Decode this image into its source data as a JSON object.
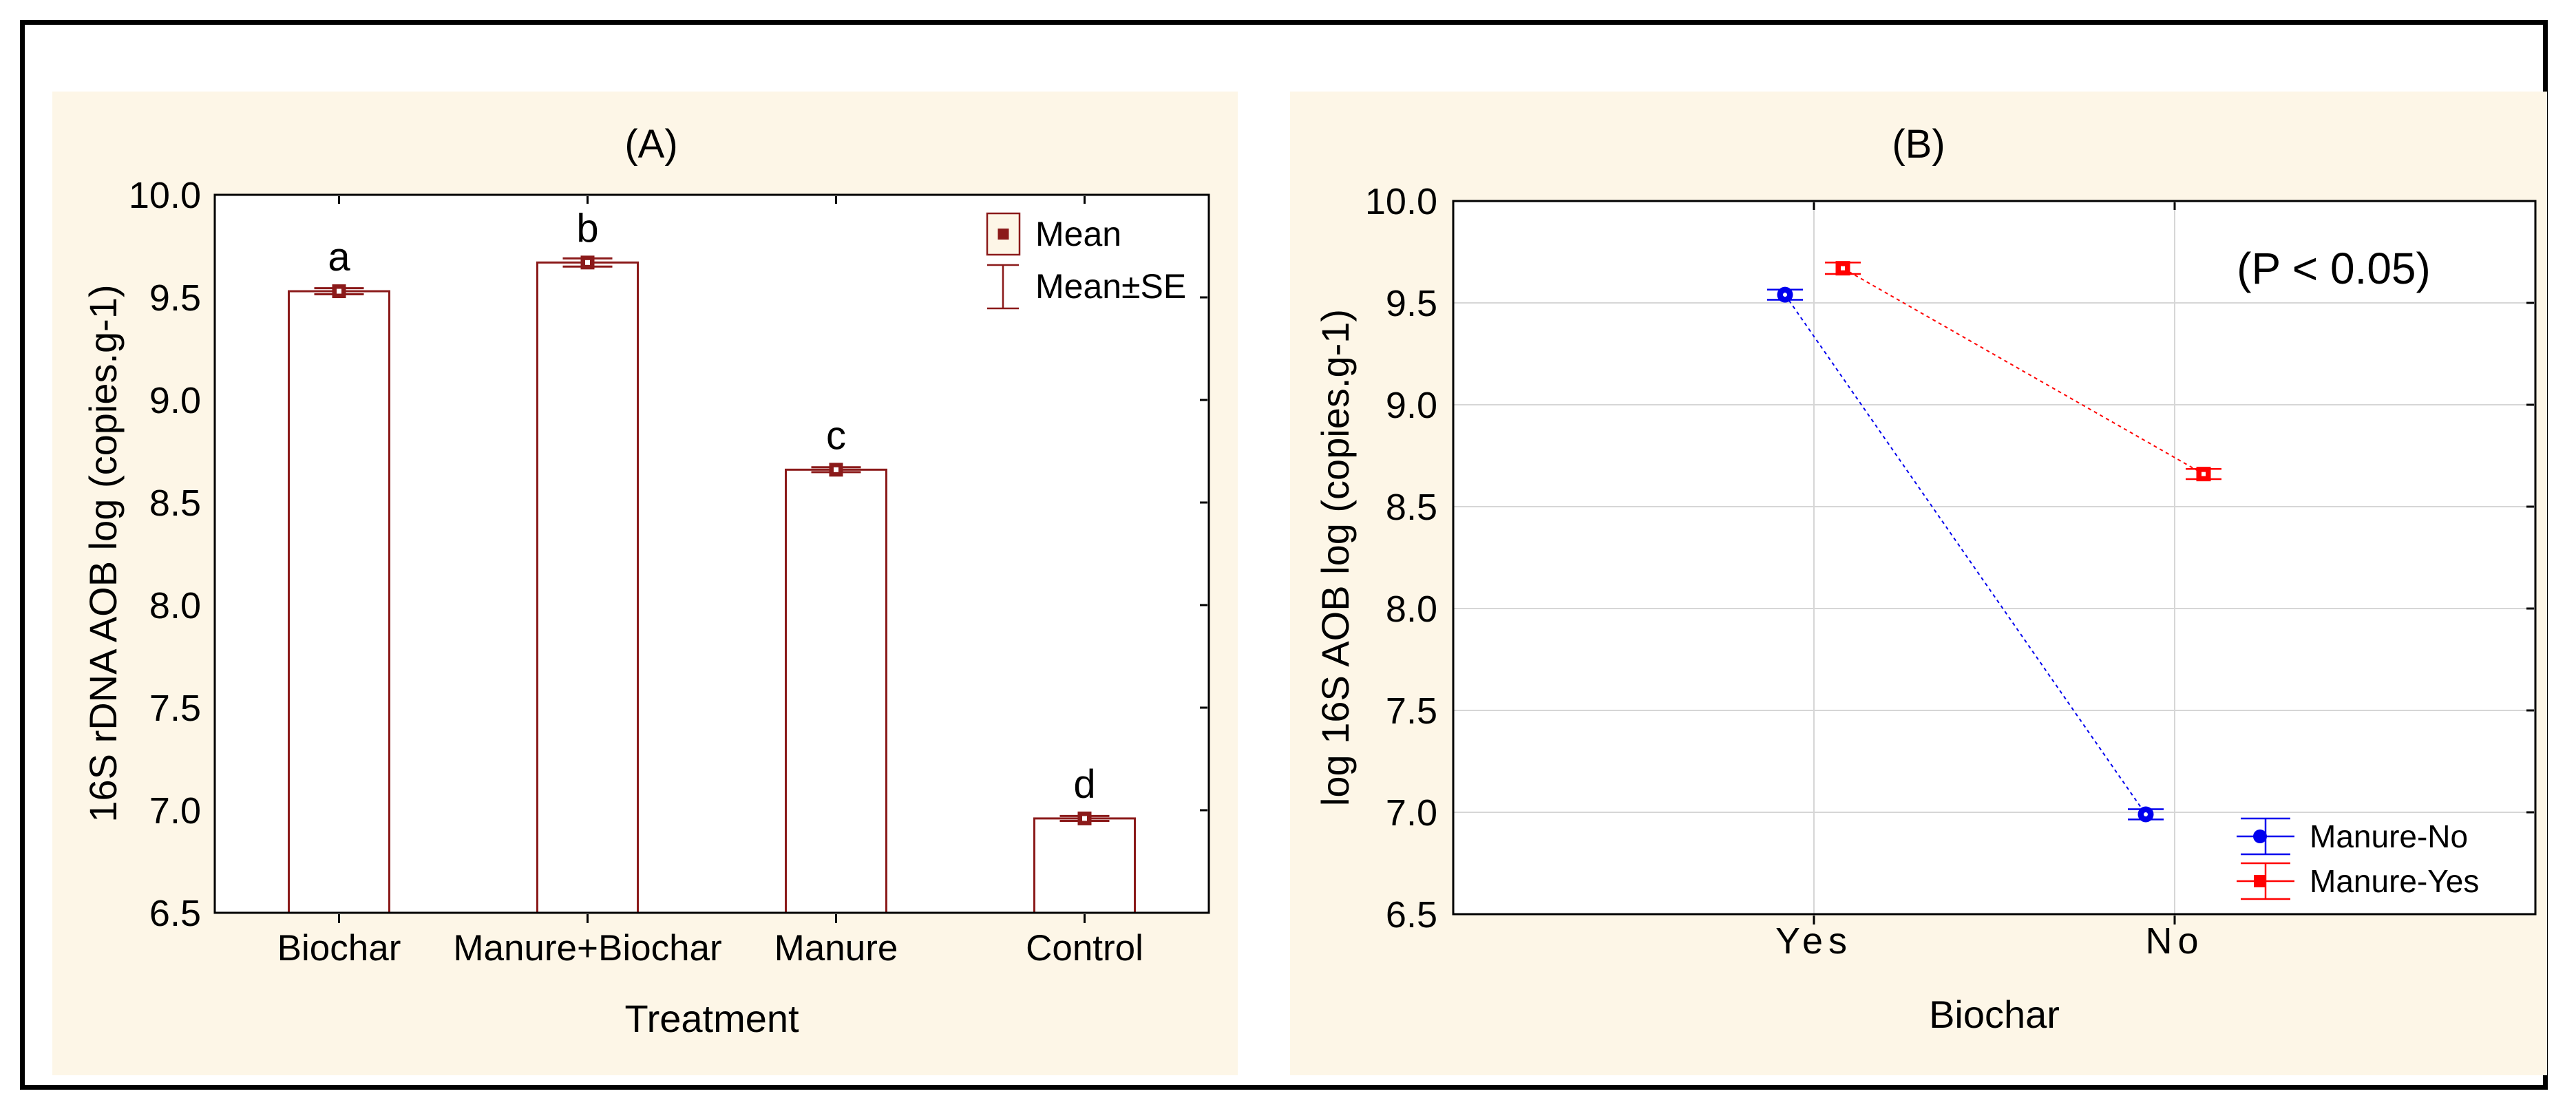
{
  "figure": {
    "background": "#ffffff",
    "border_color": "#000000",
    "panel_background": "#FDF6E7"
  },
  "chart_data": [
    {
      "id": "A",
      "type": "bar",
      "title": "(A)",
      "xlabel": "Treatment",
      "ylabel": "16S rDNA AOB log (copies.g-1)",
      "ylim": [
        6.5,
        10.0
      ],
      "ytick_labels": [
        "10.0",
        "9.5",
        "9.0",
        "8.5",
        "8.0",
        "7.5",
        "7.0",
        "6.5"
      ],
      "categories": [
        "Biochar",
        "Manure+Biochar",
        "Manure",
        "Control"
      ],
      "means": [
        9.53,
        9.67,
        8.66,
        6.96
      ],
      "se": [
        0.015,
        0.02,
        0.012,
        0.012
      ],
      "sig_letters": [
        "a",
        "b",
        "c",
        "d"
      ],
      "accent_color": "#8B1A1A",
      "bar_fill": "#ffffff",
      "plot_bg": "#ffffff",
      "grid": false,
      "legend": {
        "position": "top-right",
        "entries": [
          {
            "symbol": "mean-marker",
            "label": "Mean"
          },
          {
            "symbol": "se-whisker",
            "label": "Mean±SE"
          }
        ]
      }
    },
    {
      "id": "B",
      "type": "line",
      "title": "(B)",
      "xlabel": "Biochar",
      "ylabel": "log 16S AOB log (copies.g-1)",
      "annotation": "(P < 0.05)",
      "ylim": [
        6.5,
        10.0
      ],
      "ytick_labels": [
        "10.0",
        "9.5",
        "9.0",
        "8.5",
        "8.0",
        "7.5",
        "7.0",
        "6.5"
      ],
      "categories": [
        "Yes",
        "No"
      ],
      "series": [
        {
          "name": "Manure-No",
          "color": "#0000EE",
          "marker": "circle",
          "values": [
            9.54,
            6.99
          ],
          "se": [
            0.025,
            0.025
          ]
        },
        {
          "name": "Manure-Yes",
          "color": "#FF0000",
          "marker": "square",
          "values": [
            9.67,
            8.66
          ],
          "se": [
            0.028,
            0.025
          ]
        }
      ],
      "grid": true,
      "grid_color": "#D6D6D6",
      "plot_bg": "#ffffff",
      "legend_position": "bottom-right"
    }
  ]
}
